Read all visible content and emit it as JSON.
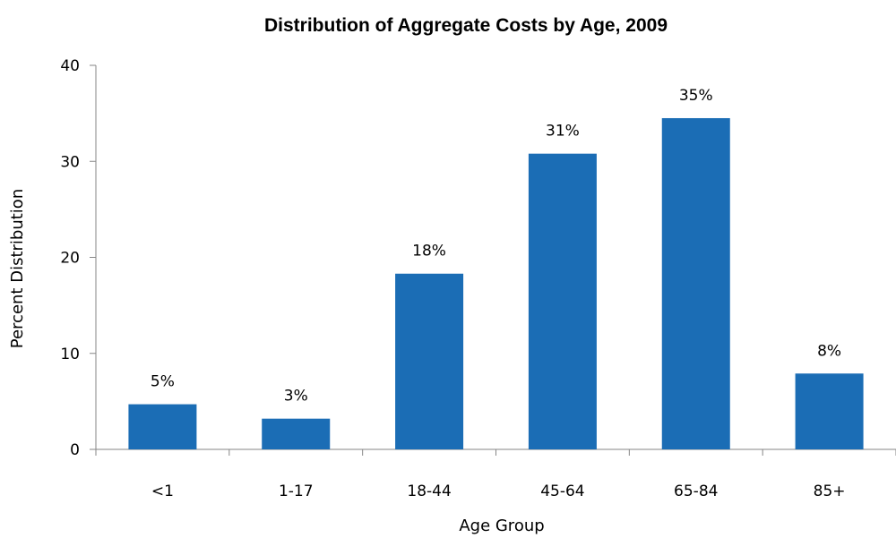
{
  "chart_data": {
    "type": "bar",
    "title": "Distribution of Aggregate Costs by Age, 2009",
    "xlabel": "Age Group",
    "ylabel": "Percent Distribution",
    "categories": [
      "<1",
      "1-17",
      "18-44",
      "45-64",
      "65-84",
      "85+"
    ],
    "values": [
      4.7,
      3.2,
      18.3,
      30.8,
      34.5,
      7.9
    ],
    "data_labels": [
      "5%",
      "3%",
      "18%",
      "31%",
      "35%",
      "8%"
    ],
    "ylim": [
      0,
      40
    ],
    "yticks": [
      0,
      10,
      20,
      30,
      40
    ],
    "bar_color": "#1B6DB5",
    "grid": false,
    "legend": "none"
  }
}
